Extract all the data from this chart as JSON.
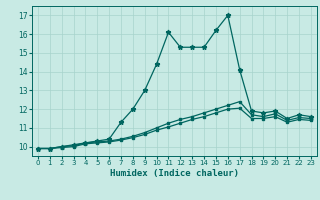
{
  "xlabel": "Humidex (Indice chaleur)",
  "background_color": "#c8eae4",
  "grid_color": "#a8d4cc",
  "line_color": "#006660",
  "xlim": [
    -0.5,
    23.5
  ],
  "ylim": [
    9.5,
    17.5
  ],
  "yticks": [
    10,
    11,
    12,
    13,
    14,
    15,
    16,
    17
  ],
  "xticks": [
    0,
    1,
    2,
    3,
    4,
    5,
    6,
    7,
    8,
    9,
    10,
    11,
    12,
    13,
    14,
    15,
    16,
    17,
    18,
    19,
    20,
    21,
    22,
    23
  ],
  "line1_x": [
    0,
    1,
    2,
    3,
    4,
    5,
    6,
    7,
    8,
    9,
    10,
    11,
    12,
    13,
    14,
    15,
    16,
    17,
    18,
    19,
    20,
    21,
    22,
    23
  ],
  "line1_y": [
    9.9,
    9.9,
    10.0,
    10.1,
    10.2,
    10.3,
    10.4,
    11.3,
    12.0,
    13.0,
    14.4,
    16.1,
    15.3,
    15.3,
    15.3,
    16.2,
    17.0,
    14.1,
    11.9,
    11.8,
    11.9,
    11.5,
    11.7,
    11.6
  ],
  "line2_x": [
    0,
    1,
    2,
    3,
    4,
    5,
    6,
    7,
    8,
    9,
    10,
    11,
    12,
    13,
    14,
    15,
    16,
    17,
    18,
    19,
    20,
    21,
    22,
    23
  ],
  "line2_y": [
    9.9,
    9.9,
    10.0,
    10.05,
    10.2,
    10.25,
    10.3,
    10.4,
    10.55,
    10.75,
    11.0,
    11.25,
    11.45,
    11.6,
    11.8,
    12.0,
    12.2,
    12.4,
    11.7,
    11.6,
    11.75,
    11.4,
    11.55,
    11.5
  ],
  "line3_x": [
    0,
    1,
    2,
    3,
    4,
    5,
    6,
    7,
    8,
    9,
    10,
    11,
    12,
    13,
    14,
    15,
    16,
    17,
    18,
    19,
    20,
    21,
    22,
    23
  ],
  "line3_y": [
    9.9,
    9.9,
    9.95,
    10.0,
    10.15,
    10.2,
    10.25,
    10.35,
    10.48,
    10.65,
    10.88,
    11.05,
    11.25,
    11.45,
    11.6,
    11.8,
    12.0,
    12.05,
    11.5,
    11.5,
    11.6,
    11.3,
    11.45,
    11.4
  ]
}
